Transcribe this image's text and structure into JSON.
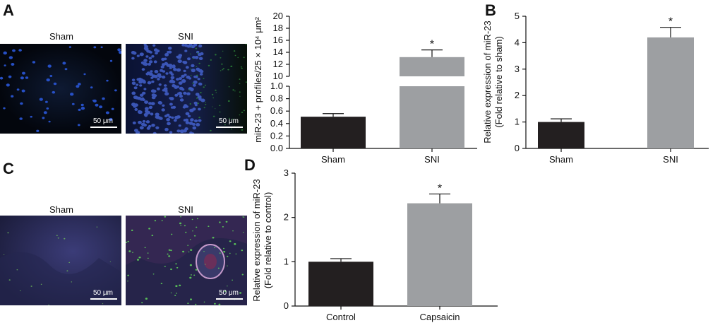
{
  "panels": {
    "a": {
      "letter": "A",
      "left_title": "Sham",
      "right_title": "SNI",
      "scale_left": "50 μm",
      "scale_right": "50 μm"
    },
    "b": {
      "letter": "B"
    },
    "c": {
      "letter": "C",
      "left_title": "Sham",
      "right_title": "SNI",
      "scale_left": "50 μm",
      "scale_right": "50 μm"
    },
    "d": {
      "letter": "D"
    }
  },
  "colors": {
    "dark_bar": "#231f20",
    "gray_bar": "#9d9fa2",
    "axis": "#111111"
  },
  "chart_data": [
    {
      "id": "A",
      "type": "bar",
      "axis_break": true,
      "categories": [
        "Sham",
        "SNI"
      ],
      "values": [
        0.51,
        13.2
      ],
      "errors": [
        0.05,
        1.2
      ],
      "significance": [
        "",
        "*"
      ],
      "ylabel": "miR-23 + profiles/25 × 10⁴ μm²",
      "yticks_lower": [
        "0.0",
        "0.2",
        "0.4",
        "0.6",
        "0.8",
        "1.0"
      ],
      "yticks_upper": [
        "10",
        "12",
        "14",
        "16",
        "18",
        "20"
      ],
      "ylim_lower": [
        0,
        1.0
      ],
      "ylim_upper": [
        10,
        20
      ]
    },
    {
      "id": "B",
      "type": "bar",
      "categories": [
        "Sham",
        "SNI"
      ],
      "values": [
        1.0,
        4.2
      ],
      "errors": [
        0.12,
        0.38
      ],
      "significance": [
        "",
        "*"
      ],
      "ylabel_line1": "Relative expression of miR-23",
      "ylabel_line2": "(Fold relative to sham)",
      "yticks": [
        "0",
        "1",
        "2",
        "3",
        "4",
        "5"
      ],
      "ylim": [
        0,
        5
      ]
    },
    {
      "id": "D",
      "type": "bar",
      "categories": [
        "Control",
        "Capsaicin"
      ],
      "values": [
        1.0,
        2.32
      ],
      "errors": [
        0.07,
        0.21
      ],
      "significance": [
        "",
        "*"
      ],
      "ylabel_line1": "Relative expression of miR-23",
      "ylabel_line2": "(Fold relative to control)",
      "yticks": [
        "0",
        "1",
        "2",
        "3"
      ],
      "ylim": [
        0,
        3
      ]
    }
  ]
}
